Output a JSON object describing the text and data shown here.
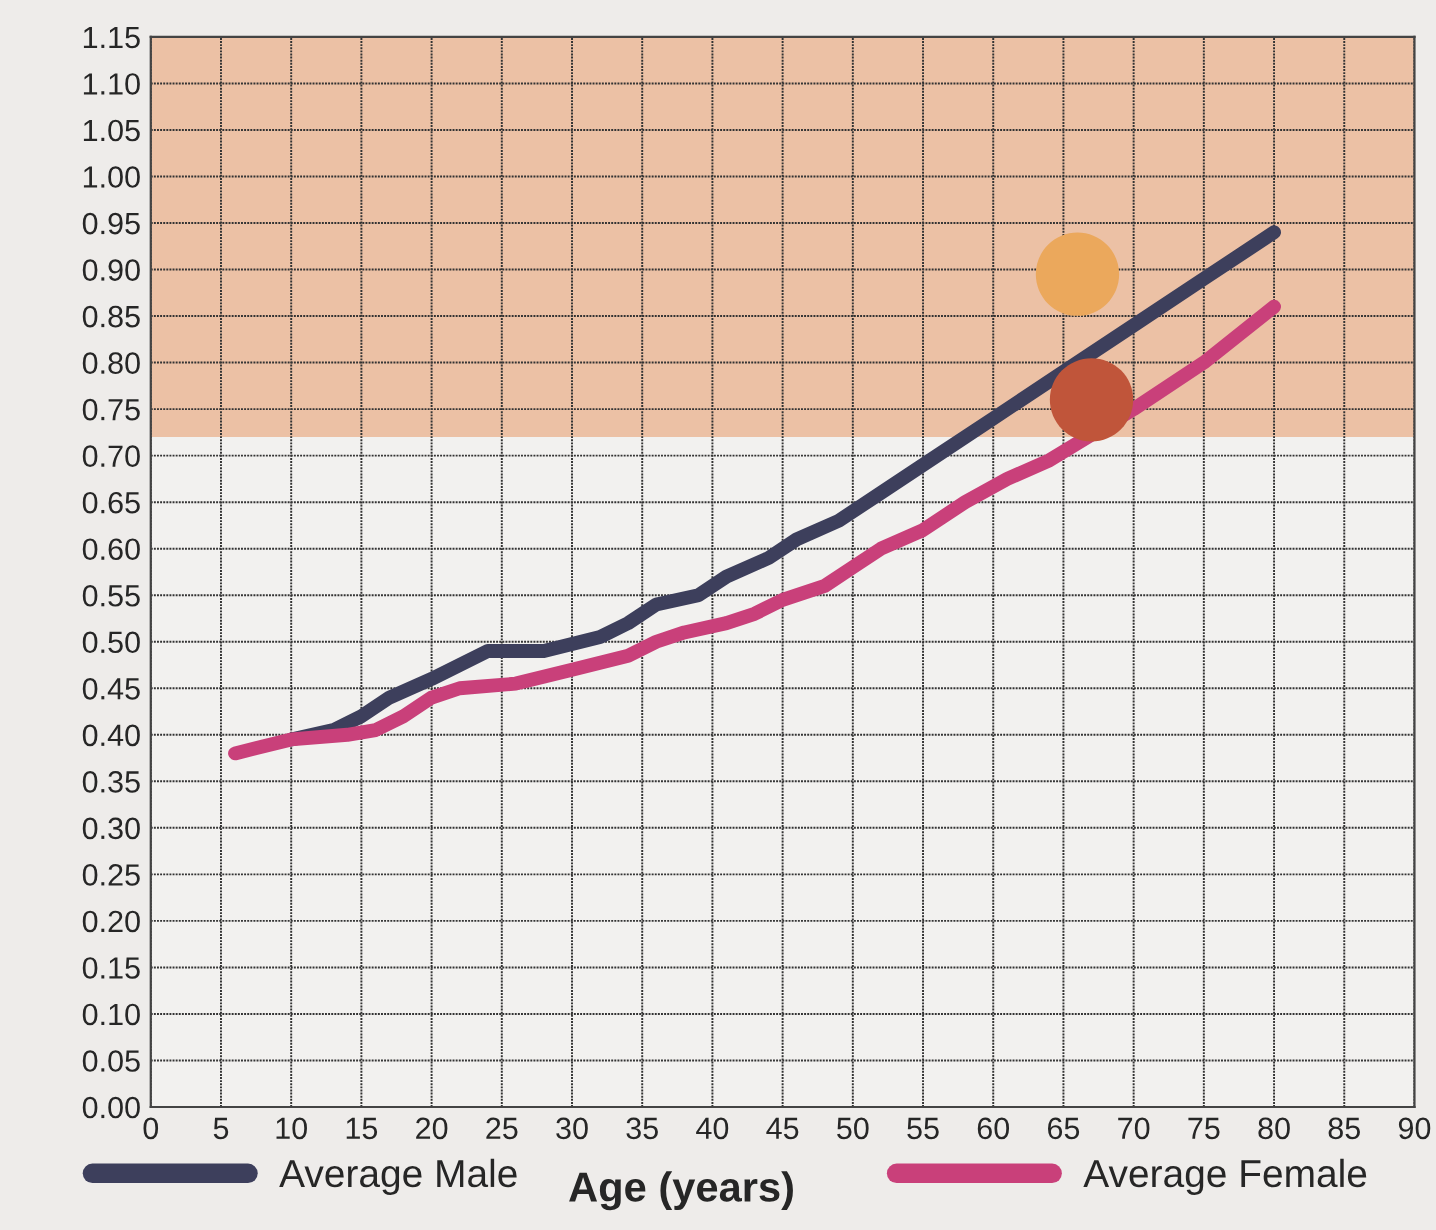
{
  "chart_data": {
    "type": "line",
    "xlabel": "Age (years)",
    "xlim": [
      0,
      90
    ],
    "xticks": [
      0,
      5,
      10,
      15,
      20,
      25,
      30,
      35,
      40,
      45,
      50,
      55,
      60,
      65,
      70,
      75,
      80,
      85,
      90
    ],
    "ylim": [
      0,
      1.15
    ],
    "yticks": [
      {
        "value": 0,
        "label": "0.00"
      },
      {
        "value": 0.05,
        "label": "0.05"
      },
      {
        "value": 0.1,
        "label": "0.10"
      },
      {
        "value": 0.15,
        "label": "0.15"
      },
      {
        "value": 0.2,
        "label": "0.20"
      },
      {
        "value": 0.25,
        "label": "0.25"
      },
      {
        "value": 0.3,
        "label": "0.30"
      },
      {
        "value": 0.35,
        "label": "0.35"
      },
      {
        "value": 0.4,
        "label": "0.40"
      },
      {
        "value": 0.45,
        "label": "0.45"
      },
      {
        "value": 0.5,
        "label": "0.50"
      },
      {
        "value": 0.55,
        "label": "0.55"
      },
      {
        "value": 0.6,
        "label": "0.60"
      },
      {
        "value": 0.65,
        "label": "0.65"
      },
      {
        "value": 0.7,
        "label": "0.70"
      },
      {
        "value": 0.75,
        "label": "0.75"
      },
      {
        "value": 0.8,
        "label": "0.80"
      },
      {
        "value": 0.85,
        "label": "0.85"
      },
      {
        "value": 0.9,
        "label": "0.90"
      },
      {
        "value": 0.95,
        "label": "0.95"
      },
      {
        "value": 1.0,
        "label": "1.00"
      },
      {
        "value": 1.05,
        "label": "1.05"
      },
      {
        "value": 1.1,
        "label": "1.10"
      },
      {
        "value": 1.15,
        "label": "1.15"
      }
    ],
    "grid": true,
    "legend": "bottom",
    "line_style": "solid",
    "bands": [
      {
        "axis": "y",
        "from": 0.72,
        "to": 1.15,
        "color": "#e9b08c"
      }
    ],
    "series": [
      {
        "name": "Average Male",
        "color": "#3d3f5c",
        "x": [
          10,
          13,
          15,
          17,
          20,
          22,
          24,
          28,
          32,
          34,
          36,
          39,
          41,
          44,
          46,
          49,
          52,
          56,
          60,
          65,
          70,
          75,
          80
        ],
        "values": [
          0.395,
          0.405,
          0.42,
          0.44,
          0.46,
          0.475,
          0.49,
          0.49,
          0.505,
          0.52,
          0.54,
          0.55,
          0.57,
          0.59,
          0.61,
          0.63,
          0.66,
          0.7,
          0.74,
          0.79,
          0.84,
          0.89,
          0.94
        ]
      },
      {
        "name": "Average Female",
        "color": "#c9407a",
        "x": [
          6,
          10,
          14,
          16,
          18,
          20,
          22,
          26,
          30,
          34,
          36,
          38,
          41,
          43,
          45,
          48,
          50,
          52,
          55,
          58,
          61,
          64,
          70,
          75,
          80
        ],
        "values": [
          0.38,
          0.395,
          0.4,
          0.405,
          0.42,
          0.44,
          0.45,
          0.455,
          0.47,
          0.485,
          0.5,
          0.51,
          0.52,
          0.53,
          0.545,
          0.56,
          0.58,
          0.6,
          0.62,
          0.65,
          0.675,
          0.695,
          0.75,
          0.8,
          0.86
        ]
      },
      {
        "type": "scatter",
        "marker": "circle",
        "color": "#eba85c",
        "x": [
          66
        ],
        "values": [
          0.895
        ]
      },
      {
        "type": "scatter",
        "marker": "circle",
        "color": "#c0553a",
        "x": [
          67
        ],
        "values": [
          0.76
        ]
      }
    ]
  }
}
